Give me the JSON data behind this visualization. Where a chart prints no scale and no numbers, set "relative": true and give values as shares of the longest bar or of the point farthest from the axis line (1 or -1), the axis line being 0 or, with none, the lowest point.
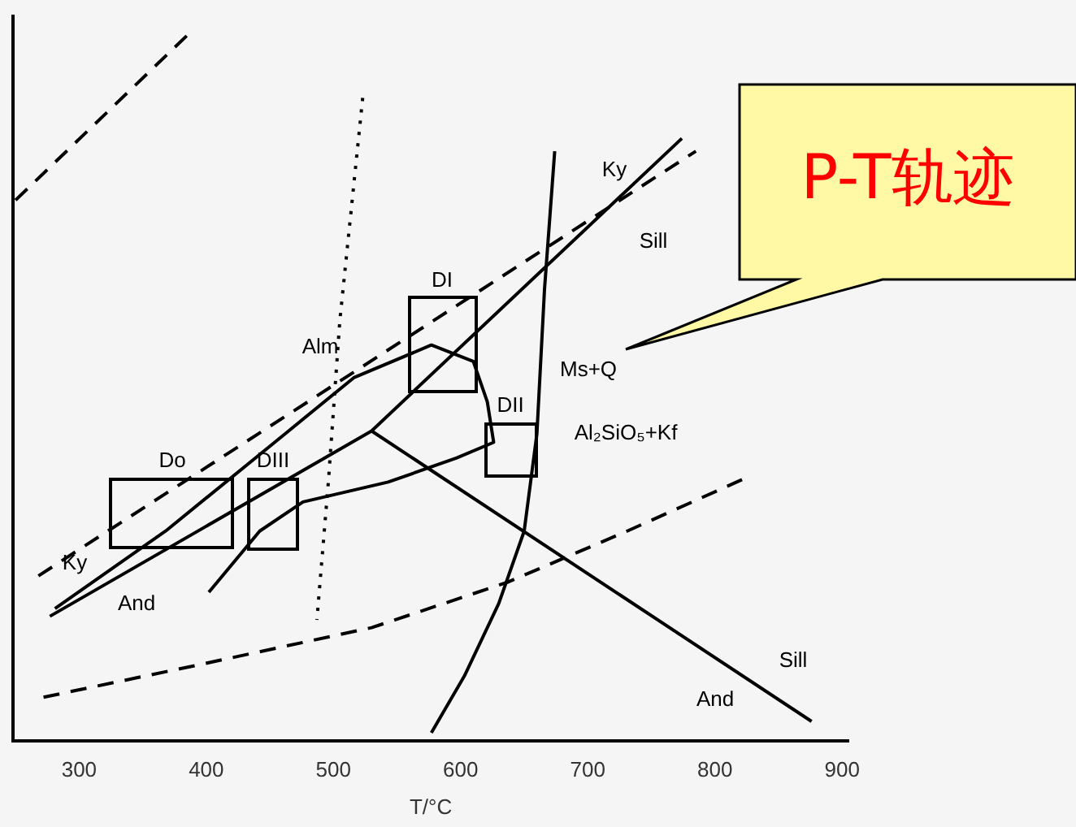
{
  "chart_data": {
    "type": "line",
    "relative": true,
    "xlabel": "T/°C",
    "xlim": [
      248,
      905
    ],
    "xticks": [
      300,
      400,
      500,
      600,
      700,
      800,
      900
    ],
    "tick_labels": "x",
    "marker": "none",
    "series": [
      {
        "color": "#000000",
        "line_style": "solid",
        "x": [
          277,
          530,
          774
        ],
        "values": [
          0.175,
          0.436,
          0.848
        ]
      },
      {
        "color": "#000000",
        "line_style": "solid",
        "x": [
          530,
          876
        ],
        "values": [
          0.436,
          0.027
        ]
      },
      {
        "color": "#000000",
        "line_style": "dashed",
        "x": [
          250,
          389
        ],
        "values": [
          0.761,
          1
        ]
      },
      {
        "color": "#000000",
        "line_style": "dashed",
        "x": [
          268,
          785
        ],
        "values": [
          0.232,
          0.83
        ]
      },
      {
        "color": "#000000",
        "line_style": "dashed",
        "x": [
          272,
          395,
          530,
          637,
          731,
          822
        ],
        "values": [
          0.061,
          0.107,
          0.159,
          0.223,
          0.295,
          0.368
        ]
      },
      {
        "color": "#000000",
        "line_style": "dotted",
        "x": [
          523,
          505,
          496,
          487
        ],
        "values": [
          0.905,
          0.591,
          0.364,
          0.17
        ]
      },
      {
        "color": "#000000",
        "line_style": "solid",
        "x": [
          674,
          666,
          660,
          650,
          630,
          603,
          577
        ],
        "values": [
          0.83,
          0.636,
          0.432,
          0.295,
          0.193,
          0.091,
          0.011
        ]
      },
      {
        "color": "#000000",
        "line_style": "solid",
        "x": [
          281,
          368,
          462,
          516,
          577,
          610,
          621,
          626,
          597,
          543,
          476,
          442,
          402
        ],
        "values": [
          0.186,
          0.295,
          0.432,
          0.511,
          0.557,
          0.534,
          0.477,
          0.42,
          0.398,
          0.364,
          0.336,
          0.295,
          0.209
        ]
      }
    ],
    "annotations": [
      "Do",
      "DIII",
      "DI",
      "DII",
      "Ky",
      "Sill",
      "Ky",
      "And",
      "Alm",
      "Ms+Q",
      "Al₂SiO₅+Kf",
      "Sill",
      "And",
      "P-T轨迹"
    ]
  }
}
